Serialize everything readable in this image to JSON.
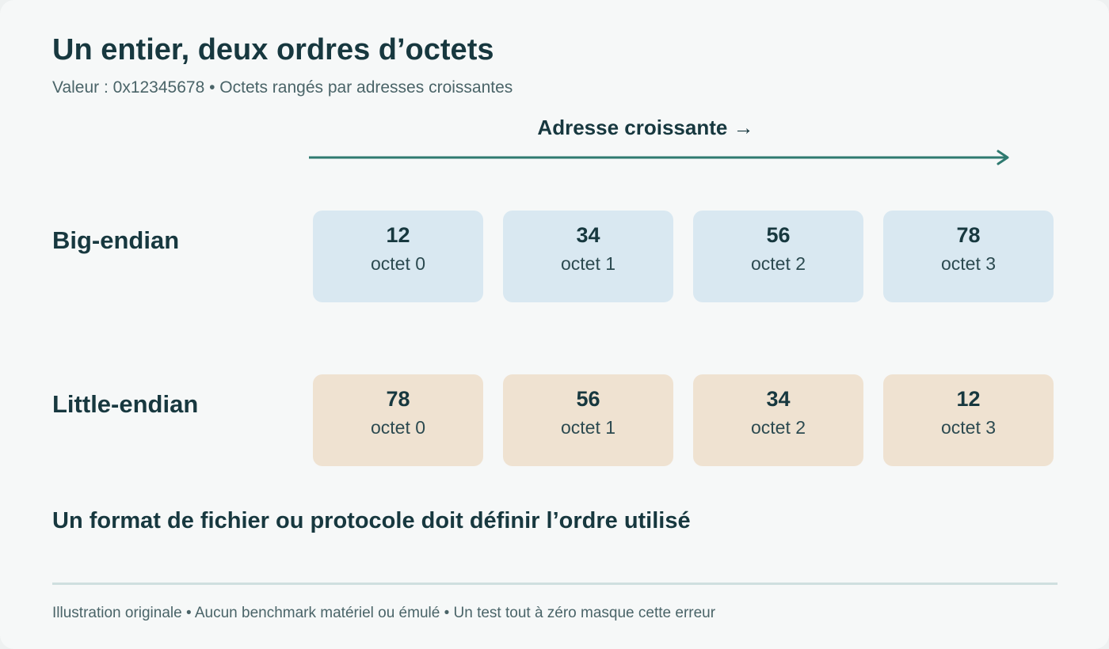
{
  "header": {
    "title": "Un entier, deux ordres d’octets",
    "subtitle": "Valeur : 0x12345678 • Octets rangés par adresses croissantes"
  },
  "axis": {
    "label": "Adresse croissante →",
    "color": "#2f7a70"
  },
  "rows": {
    "big_endian": {
      "label": "Big-endian",
      "color": "#d9e8f1",
      "bytes": [
        {
          "value": "12",
          "address": "octet 0"
        },
        {
          "value": "34",
          "address": "octet 1"
        },
        {
          "value": "56",
          "address": "octet 2"
        },
        {
          "value": "78",
          "address": "octet 3"
        }
      ]
    },
    "little_endian": {
      "label": "Little-endian",
      "color": "#efe2d1",
      "bytes": [
        {
          "value": "78",
          "address": "octet 0"
        },
        {
          "value": "56",
          "address": "octet 1"
        },
        {
          "value": "34",
          "address": "octet 2"
        },
        {
          "value": "12",
          "address": "octet 3"
        }
      ]
    }
  },
  "note": "Un format de fichier ou protocole doit définir l’ordre utilisé",
  "footer": "Illustration originale • Aucun benchmark matériel ou émulé • Un test tout à zéro masque cette erreur"
}
